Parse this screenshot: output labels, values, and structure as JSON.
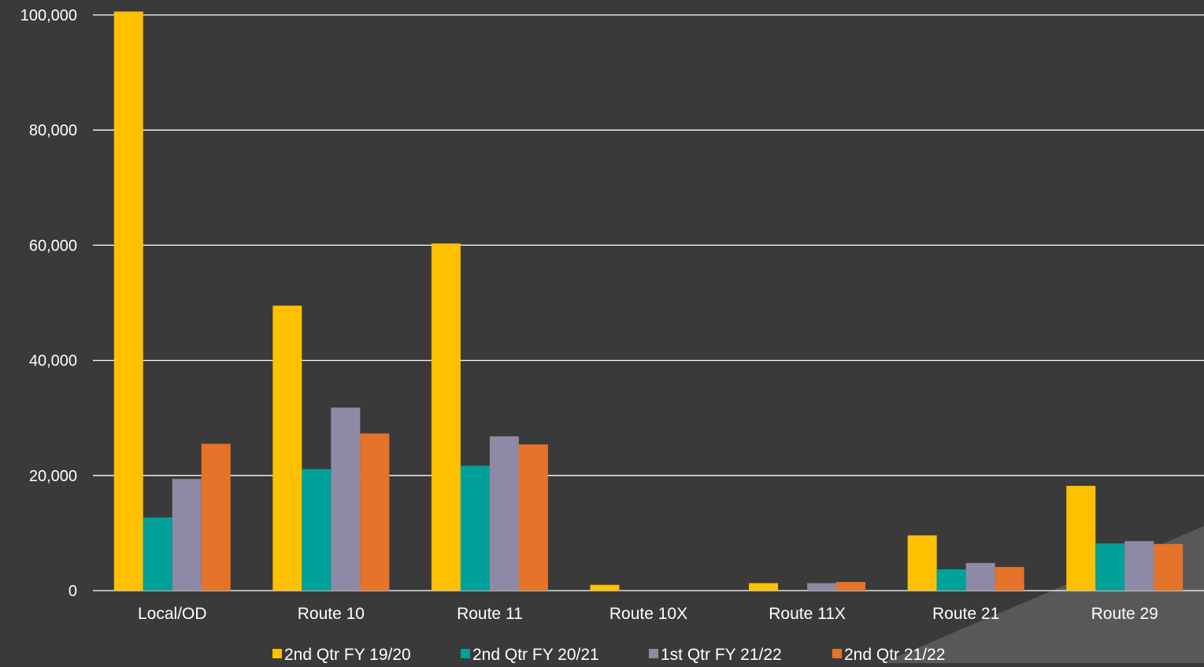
{
  "chart_data": {
    "type": "bar",
    "categories": [
      "Local/OD",
      "Route 10",
      "Route 11",
      "Route 10X",
      "Route 11X",
      "Route 21",
      "Route 29"
    ],
    "series": [
      {
        "name": "2nd Qtr FY 19/20",
        "color": "#FFC000",
        "values": [
          100600,
          49500,
          60300,
          1000,
          1300,
          9600,
          18200
        ]
      },
      {
        "name": "2nd Qtr FY 20/21",
        "color": "#00A19A",
        "values": [
          12700,
          21100,
          21700,
          0,
          0,
          3700,
          8200
        ]
      },
      {
        "name": "1st Qtr FY 21/22",
        "color": "#8E8AA6",
        "values": [
          19400,
          31800,
          26800,
          0,
          1300,
          4800,
          8600
        ]
      },
      {
        "name": "2nd Qtr 21/22",
        "color": "#E5732A",
        "values": [
          25500,
          27300,
          25400,
          0,
          1500,
          4100,
          8100
        ]
      }
    ],
    "yticks": [
      "0",
      "20,000",
      "40,000",
      "60,000",
      "80,000",
      "100,000"
    ],
    "ylim": [
      0,
      100000
    ],
    "grid": true,
    "legend": "bottom"
  }
}
